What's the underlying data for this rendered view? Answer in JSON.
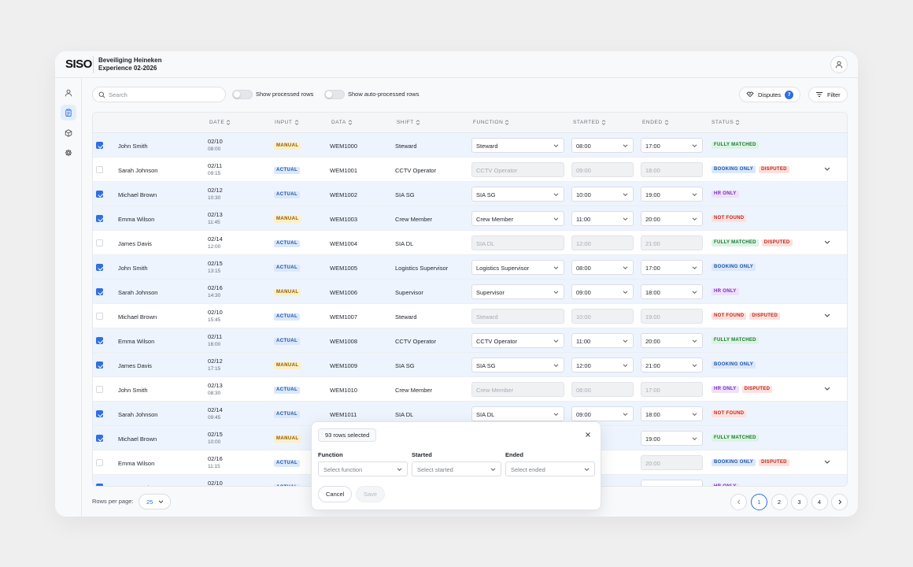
{
  "app": {
    "logo": "SISO",
    "project_line1": "Beveiliging Heineken",
    "project_line2": "Experience 02-2026"
  },
  "toolbar": {
    "search_placeholder": "Search",
    "toggle_processed": "Show processed rows",
    "toggle_auto": "Show auto-processed rows",
    "disputes_label": "Disputes",
    "disputes_count": "7",
    "filter_label": "Filter"
  },
  "table": {
    "headers": [
      "DATE",
      "INPUT",
      "DATA",
      "SHIFT",
      "FUNCTION",
      "STARTED",
      "ENDED",
      "STATUS"
    ],
    "rows": [
      {
        "checked": true,
        "name": "John Smith",
        "date": "02/10",
        "time": "08:00",
        "input": "MANUAL",
        "data": "WEM1000",
        "shift": "Steward",
        "function": "Steward",
        "started": "08:00",
        "ended": "17:00",
        "editable": true,
        "status": [
          "FULLY MATCHED"
        ],
        "expand": false
      },
      {
        "checked": false,
        "name": "Sarah Johnson",
        "date": "02/11",
        "time": "09:15",
        "input": "ACTUAL",
        "data": "WEM1001",
        "shift": "CCTV Operator",
        "function": "CCTV Operator",
        "started": "09:00",
        "ended": "18:00",
        "editable": false,
        "status": [
          "BOOKING ONLY",
          "DISPUTED"
        ],
        "expand": true
      },
      {
        "checked": true,
        "name": "Michael Brown",
        "date": "02/12",
        "time": "10:30",
        "input": "ACTUAL",
        "data": "WEM1002",
        "shift": "SIA SG",
        "function": "SIA SG",
        "started": "10:00",
        "ended": "19:00",
        "editable": true,
        "status": [
          "HR ONLY"
        ],
        "expand": false
      },
      {
        "checked": true,
        "name": "Emma Wilson",
        "date": "02/13",
        "time": "11:45",
        "input": "MANUAL",
        "data": "WEM1003",
        "shift": "Crew Member",
        "function": "Crew Member",
        "started": "11:00",
        "ended": "20:00",
        "editable": true,
        "status": [
          "NOT FOUND"
        ],
        "expand": false
      },
      {
        "checked": false,
        "name": "James Davis",
        "date": "02/14",
        "time": "12:00",
        "input": "ACTUAL",
        "data": "WEM1004",
        "shift": "SIA DL",
        "function": "SIA DL",
        "started": "12:00",
        "ended": "21:00",
        "editable": false,
        "status": [
          "FULLY MATCHED",
          "DISPUTED"
        ],
        "expand": true
      },
      {
        "checked": true,
        "name": "John Smith",
        "date": "02/15",
        "time": "13:15",
        "input": "ACTUAL",
        "data": "WEM1005",
        "shift": "Logistics Supervisor",
        "function": "Logistics Supervisor",
        "started": "08:00",
        "ended": "17:00",
        "editable": true,
        "status": [
          "BOOKING ONLY"
        ],
        "expand": false
      },
      {
        "checked": true,
        "name": "Sarah Johnson",
        "date": "02/16",
        "time": "14:30",
        "input": "MANUAL",
        "data": "WEM1006",
        "shift": "Supervisor",
        "function": "Supervisor",
        "started": "09:00",
        "ended": "18:00",
        "editable": true,
        "status": [
          "HR ONLY"
        ],
        "expand": false
      },
      {
        "checked": false,
        "name": "Michael Brown",
        "date": "02/10",
        "time": "15:45",
        "input": "ACTUAL",
        "data": "WEM1007",
        "shift": "Steward",
        "function": "Steward",
        "started": "10:00",
        "ended": "19:00",
        "editable": false,
        "status": [
          "NOT FOUND",
          "DISPUTED"
        ],
        "expand": true
      },
      {
        "checked": true,
        "name": "Emma Wilson",
        "date": "02/11",
        "time": "16:00",
        "input": "ACTUAL",
        "data": "WEM1008",
        "shift": "CCTV Operator",
        "function": "CCTV Operator",
        "started": "11:00",
        "ended": "20:00",
        "editable": true,
        "status": [
          "FULLY MATCHED"
        ],
        "expand": false
      },
      {
        "checked": true,
        "name": "James Davis",
        "date": "02/12",
        "time": "17:15",
        "input": "MANUAL",
        "data": "WEM1009",
        "shift": "SIA SG",
        "function": "SIA SG",
        "started": "12:00",
        "ended": "21:00",
        "editable": true,
        "status": [
          "BOOKING ONLY"
        ],
        "expand": false
      },
      {
        "checked": false,
        "name": "John Smith",
        "date": "02/13",
        "time": "08:30",
        "input": "ACTUAL",
        "data": "WEM1010",
        "shift": "Crew Member",
        "function": "Crew Member",
        "started": "08:00",
        "ended": "17:00",
        "editable": false,
        "status": [
          "HR ONLY",
          "DISPUTED"
        ],
        "expand": true
      },
      {
        "checked": true,
        "name": "Sarah Johnson",
        "date": "02/14",
        "time": "09:45",
        "input": "ACTUAL",
        "data": "WEM1011",
        "shift": "SIA DL",
        "function": "SIA DL",
        "started": "09:00",
        "ended": "18:00",
        "editable": true,
        "status": [
          "NOT FOUND"
        ],
        "expand": false
      },
      {
        "checked": true,
        "name": "Michael Brown",
        "date": "02/15",
        "time": "10:00",
        "input": "MANUAL",
        "data": "",
        "shift": "",
        "function": "",
        "started": "",
        "ended": "19:00",
        "editable": true,
        "status": [
          "FULLY MATCHED"
        ],
        "expand": false
      },
      {
        "checked": false,
        "name": "Emma Wilson",
        "date": "02/16",
        "time": "11:15",
        "input": "ACTUAL",
        "data": "",
        "shift": "",
        "function": "",
        "started": "",
        "ended": "20:00",
        "editable": false,
        "status": [
          "BOOKING ONLY",
          "DISPUTED"
        ],
        "expand": true
      },
      {
        "checked": true,
        "name": "James Davis",
        "date": "02/10",
        "time": "",
        "input": "ACTUAL",
        "data": "",
        "shift": "",
        "function": "",
        "started": "",
        "ended": "21:00",
        "editable": true,
        "status": [
          "HR ONLY"
        ],
        "expand": false
      }
    ]
  },
  "footer": {
    "rows_per_page_label": "Rows per page:",
    "rows_per_page_value": "25",
    "pages": [
      "1",
      "2",
      "3",
      "4"
    ],
    "active_page": "1"
  },
  "bulk_edit": {
    "count_label": "93 rows selected",
    "function_label": "Function",
    "function_placeholder": "Select function",
    "started_label": "Started",
    "started_placeholder": "Select started",
    "ended_label": "Ended",
    "ended_placeholder": "Select ended",
    "cancel_label": "Cancel",
    "save_label": "Save"
  }
}
